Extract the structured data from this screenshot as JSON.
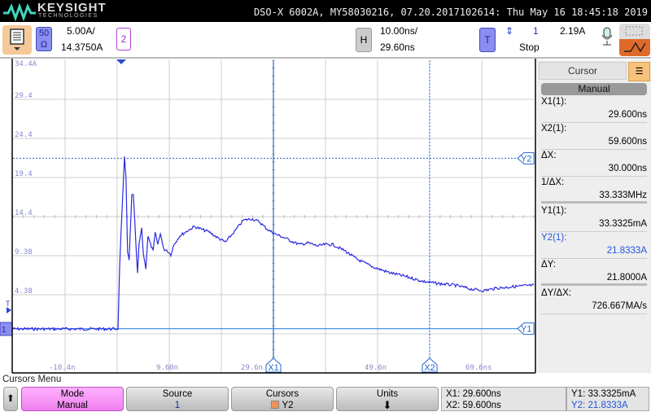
{
  "header": {
    "brand": "KEYSIGHT",
    "brand_sub": "TECHNOLOGIES",
    "title": "DSO-X 6002A, MY58030216, 07.20.2017102614: Thu May 16 18:45:18 2019"
  },
  "toolbar": {
    "channel1": {
      "impedance_top": "50",
      "impedance_bottom": "Ω",
      "scale": "5.00A/",
      "offset": "14.3750A"
    },
    "channel2_label": "2",
    "horizontal": {
      "label": "H",
      "scale": "10.00ns/",
      "delay": "29.60ns"
    },
    "trigger": {
      "label": "T",
      "source": "1",
      "level": "2.19A",
      "status": "Stop"
    }
  },
  "plot": {
    "y_labels": [
      "34.4A",
      "29.4",
      "24.4",
      "19.4",
      "14.4",
      "9.38",
      "4.38"
    ],
    "x_labels": [
      "-10.4n",
      "9.60n",
      "29.6n",
      "49.6n",
      "69.6ns"
    ],
    "cursor_labels": {
      "x1": "X1",
      "x2": "X2",
      "y1": "Y1",
      "y2": "Y2"
    },
    "channel_marker": "1",
    "trigger_marker": "T",
    "trace_color": "#2a2ae0",
    "cursor_color": "#2266cc",
    "y_per_div": 5.0,
    "time_per_div": 10.0,
    "cursors": {
      "x1_ns": 29.6,
      "x2_ns": 59.6,
      "y1_a": 0.0333,
      "y2_a": 21.8333
    },
    "waveform": {
      "t_ns": [
        -20.6,
        -0.25,
        0.06,
        0.53,
        1.0,
        1.3,
        1.6,
        1.9,
        2.4,
        2.7,
        3.2,
        3.5,
        3.8,
        4.3,
        4.6,
        5.1,
        5.5,
        6.0,
        6.5,
        6.9,
        7.4,
        7.9,
        8.5,
        9.1,
        9.9,
        10.5,
        11.6,
        13.2,
        14.4,
        16.0,
        17.3,
        18.8,
        20.4,
        22.3,
        23.8,
        25.4,
        26.9,
        28.5,
        30.1,
        31.6,
        33.5,
        34.7,
        36.3,
        38.2,
        39.4,
        41.0,
        43.3,
        45.7,
        48.8,
        51.9,
        55.1,
        58.2,
        61.3,
        64.4,
        67.6,
        69.9,
        72.3,
        75.4,
        79.6
      ],
      "i_a": [
        0,
        0,
        7.7,
        15.0,
        22.1,
        19.2,
        9.8,
        8.8,
        17.1,
        17.3,
        10.8,
        7.1,
        10.8,
        12.9,
        9.8,
        7.7,
        11.9,
        10.8,
        10.0,
        12.3,
        10.8,
        12.3,
        10.2,
        10.1,
        9.5,
        10.8,
        11.9,
        12.6,
        13.1,
        12.7,
        12.4,
        11.7,
        11.1,
        12.6,
        13.9,
        14.1,
        13.7,
        12.7,
        12.1,
        11.7,
        11.1,
        10.8,
        11.0,
        10.6,
        10.8,
        10.8,
        10.0,
        8.9,
        7.9,
        7.2,
        6.7,
        6.1,
        5.8,
        5.6,
        5.1,
        4.9,
        5.2,
        5.4,
        5.6
      ]
    }
  },
  "cursor_panel": {
    "title": "Cursor",
    "mode": "Manual",
    "rows": [
      {
        "label": "X1(1):",
        "value": "29.600ns"
      },
      {
        "label": "X2(1):",
        "value": "59.600ns"
      },
      {
        "label": "ΔX:",
        "value": "30.000ns"
      },
      {
        "label": "1/ΔX:",
        "value": "33.333MHz"
      },
      {
        "label": "Y1(1):",
        "value": "33.3325mA"
      },
      {
        "label": "Y2(1):",
        "value": "21.8333A"
      },
      {
        "label": "ΔY:",
        "value": "21.8000A"
      },
      {
        "label": "ΔY/ΔX:",
        "value": "726.667MA/s"
      }
    ]
  },
  "softkeys": {
    "menu_title": "Cursors Menu",
    "mode": {
      "label": "Mode",
      "value": "Manual"
    },
    "source": {
      "label": "Source",
      "value": "1"
    },
    "cursors": {
      "label": "Cursors",
      "value": "Y2"
    },
    "units": {
      "label": "Units"
    },
    "readout": {
      "x1": "X1: 29.600ns",
      "x2": "X2: 59.600ns",
      "y1": "Y1: 33.3325mA",
      "y2": "Y2: 21.8333A"
    }
  }
}
